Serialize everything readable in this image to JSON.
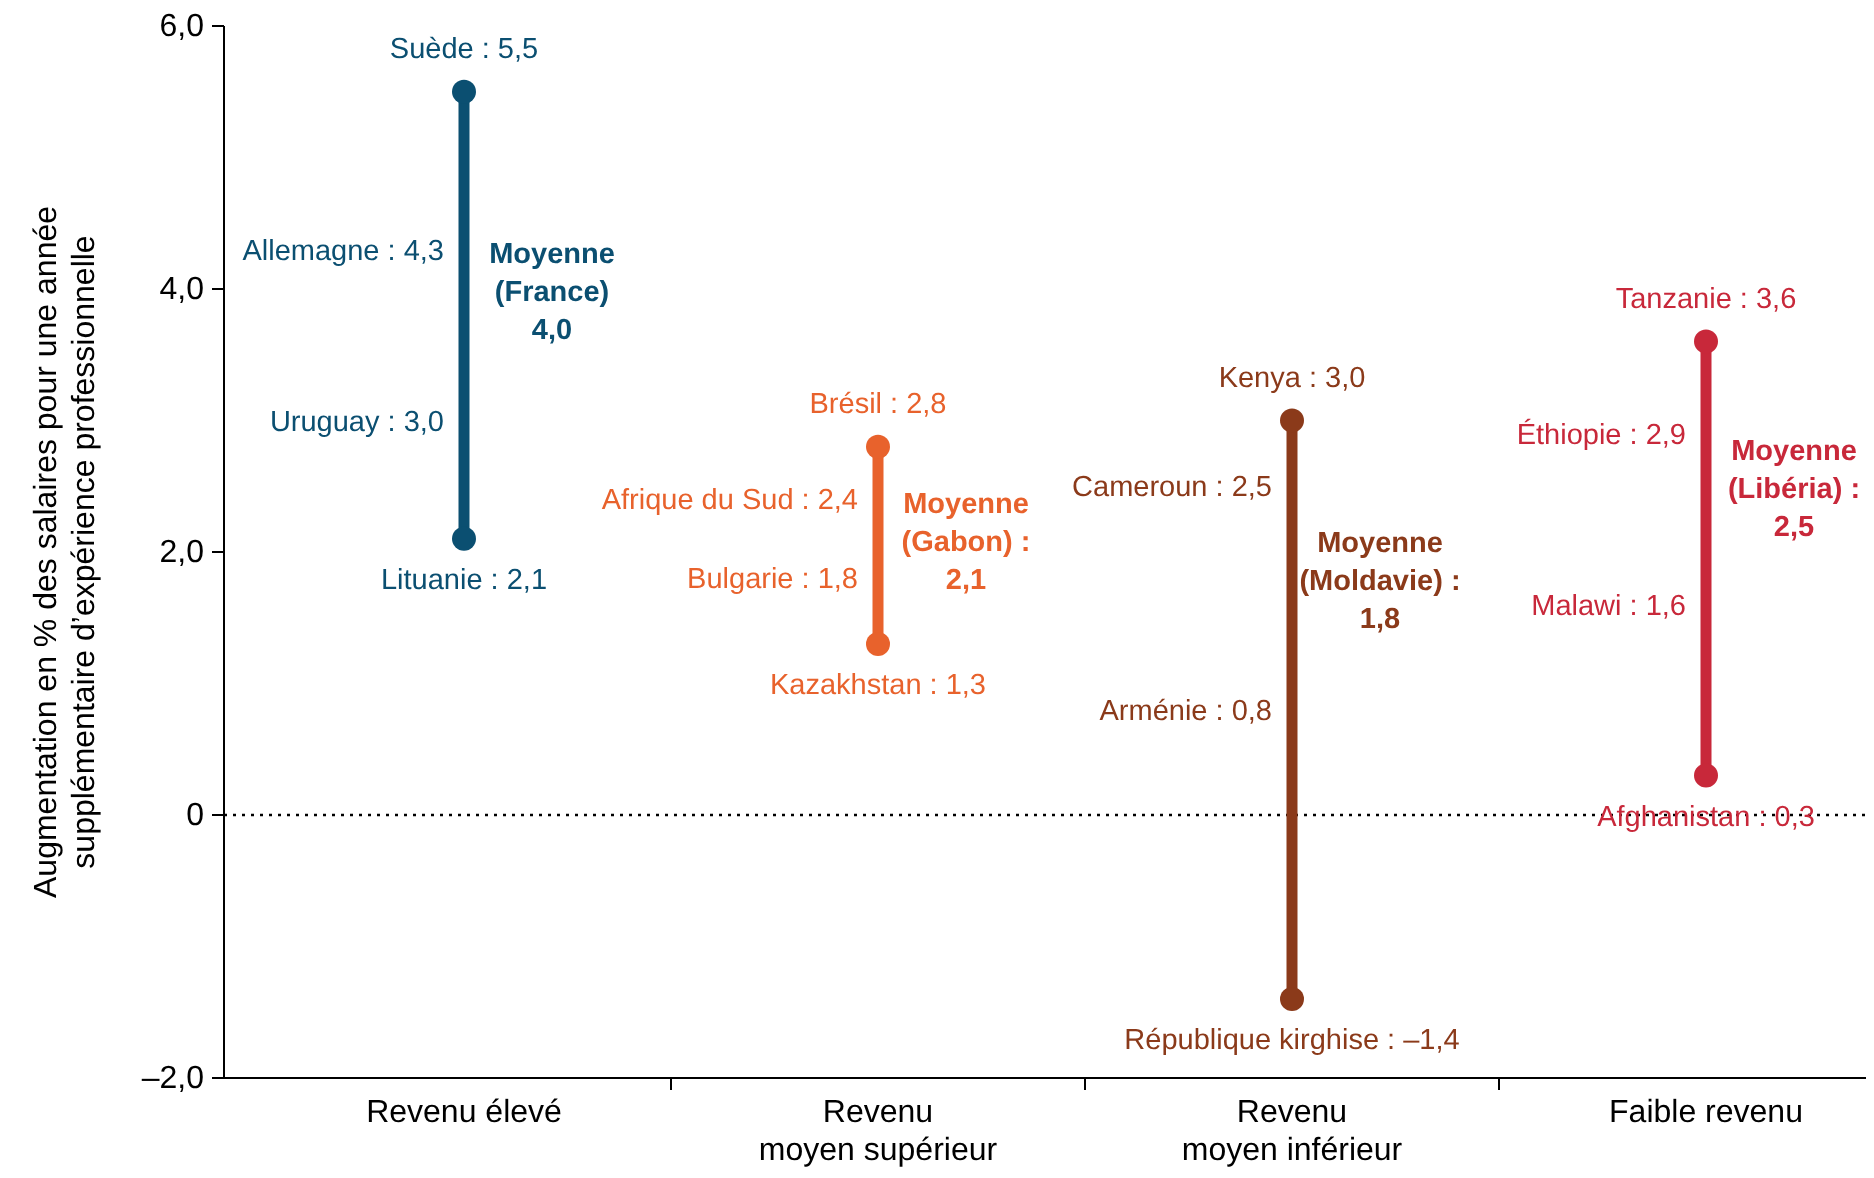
{
  "chart_data": {
    "type": "line",
    "ylabel": "Augmentation en % des salaires pour une année\nsupplémentaire d’expérience professionnelle",
    "categories": [
      "Revenu élevé",
      "Revenu\nmoyen supérieur",
      "Revenu\nmoyen inférieur",
      "Faible revenu"
    ],
    "series": [
      {
        "x": [
          "Revenu élevé",
          "Revenu élevé"
        ],
        "values": [
          2.1,
          5.5
        ],
        "color": "#0b4f71"
      },
      {
        "x": [
          "Revenu\nmoyen supérieur",
          "Revenu\nmoyen supérieur"
        ],
        "values": [
          1.3,
          2.8
        ],
        "color": "#e8622c"
      },
      {
        "x": [
          "Revenu\nmoyen inférieur",
          "Revenu\nmoyen inférieur"
        ],
        "values": [
          -1.4,
          3.0
        ],
        "color": "#8b3a1a"
      },
      {
        "x": [
          "Faible revenu",
          "Faible revenu"
        ],
        "values": [
          0.3,
          3.6
        ],
        "color": "#c8283a"
      }
    ],
    "ylim": [
      -2,
      6
    ],
    "yticks": [
      {
        "value": -2,
        "label": "–2,0"
      },
      {
        "value": 0,
        "label": "0"
      },
      {
        "value": 2,
        "label": "2,0"
      },
      {
        "value": 4,
        "label": "4,0"
      },
      {
        "value": 6,
        "label": "6,0"
      }
    ],
    "marker": "circle",
    "line_style": "solid",
    "ref_lines": [
      {
        "axis": "y",
        "value": 0,
        "line_style": "dotted",
        "color": "#000000"
      }
    ],
    "annotations": [
      {
        "text": "Suède : 5,5",
        "x": "Revenu élevé",
        "y": 5.5
      },
      {
        "text": "Allemagne : 4,3",
        "x": "Revenu élevé",
        "y": 4.3
      },
      {
        "text": "Uruguay : 3,0",
        "x": "Revenu élevé",
        "y": 3.0
      },
      {
        "text": "Lituanie : 2,1",
        "x": "Revenu élevé",
        "y": 2.1
      },
      {
        "text": "Moyenne\n(France)\n4,0",
        "x": "Revenu élevé",
        "y": 4.0
      },
      {
        "text": "Brésil : 2,8",
        "x": "Revenu\nmoyen supérieur",
        "y": 2.8
      },
      {
        "text": "Afrique du Sud : 2,4",
        "x": "Revenu\nmoyen supérieur",
        "y": 2.4
      },
      {
        "text": "Bulgarie : 1,8",
        "x": "Revenu\nmoyen supérieur",
        "y": 1.8
      },
      {
        "text": "Kazakhstan : 1,3",
        "x": "Revenu\nmoyen supérieur",
        "y": 1.3
      },
      {
        "text": "Moyenne\n(Gabon) :\n2,1",
        "x": "Revenu\nmoyen supérieur",
        "y": 2.1
      },
      {
        "text": "Kenya : 3,0",
        "x": "Revenu\nmoyen inférieur",
        "y": 3.0
      },
      {
        "text": "Cameroun : 2,5",
        "x": "Revenu\nmoyen inférieur",
        "y": 2.5
      },
      {
        "text": "Arménie : 0,8",
        "x": "Revenu\nmoyen inférieur",
        "y": 0.8
      },
      {
        "text": "République kirghise : –1,4",
        "x": "Revenu\nmoyen inférieur",
        "y": -1.4
      },
      {
        "text": "Moyenne\n(Moldavie) :\n1,8",
        "x": "Revenu\nmoyen inférieur",
        "y": 1.8
      },
      {
        "text": "Tanzanie : 3,6",
        "x": "Faible revenu",
        "y": 3.6
      },
      {
        "text": "Éthiopie : 2,9",
        "x": "Faible revenu",
        "y": 2.9
      },
      {
        "text": "Malawi : 1,6",
        "x": "Faible revenu",
        "y": 1.6
      },
      {
        "text": "Afghanistan : 0,3",
        "x": "Faible revenu",
        "y": 0.3
      },
      {
        "text": "Moyenne\n(Libéria) :\n2,5",
        "x": "Faible revenu",
        "y": 2.5
      }
    ]
  }
}
